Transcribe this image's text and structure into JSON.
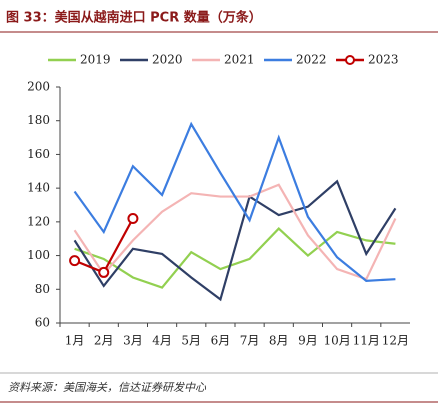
{
  "chart_data": {
    "type": "line",
    "title": "图 33：美国从越南进口 PCR 数量（万条）",
    "source": "资料来源：美国海关，信达证券研发中心",
    "categories": [
      "1月",
      "2月",
      "3月",
      "4月",
      "5月",
      "6月",
      "7月",
      "8月",
      "9月",
      "10月",
      "11月",
      "12月"
    ],
    "series": [
      {
        "name": "2019",
        "color": "#92d050",
        "values": [
          104,
          98,
          87,
          81,
          102,
          92,
          98,
          116,
          100,
          114,
          109,
          107
        ]
      },
      {
        "name": "2020",
        "color": "#2f3f66",
        "values": [
          109,
          82,
          104,
          101,
          87,
          74,
          135,
          124,
          129,
          144,
          101,
          128
        ]
      },
      {
        "name": "2021",
        "color": "#f4b4b4",
        "values": [
          115,
          89,
          109,
          126,
          137,
          135,
          135,
          142,
          112,
          92,
          86,
          122
        ]
      },
      {
        "name": "2022",
        "color": "#3c7de0",
        "values": [
          138,
          114,
          153,
          136,
          178,
          149,
          121,
          170,
          123,
          99,
          85,
          86
        ]
      },
      {
        "name": "2023",
        "color": "#c00000",
        "marker": "circle",
        "values": [
          97,
          90,
          122,
          null,
          null,
          null,
          null,
          null,
          null,
          null,
          null,
          null
        ]
      }
    ],
    "ylim": [
      60,
      200
    ],
    "yticks": [
      60,
      80,
      100,
      120,
      140,
      160,
      180,
      200
    ],
    "legend": "top"
  }
}
